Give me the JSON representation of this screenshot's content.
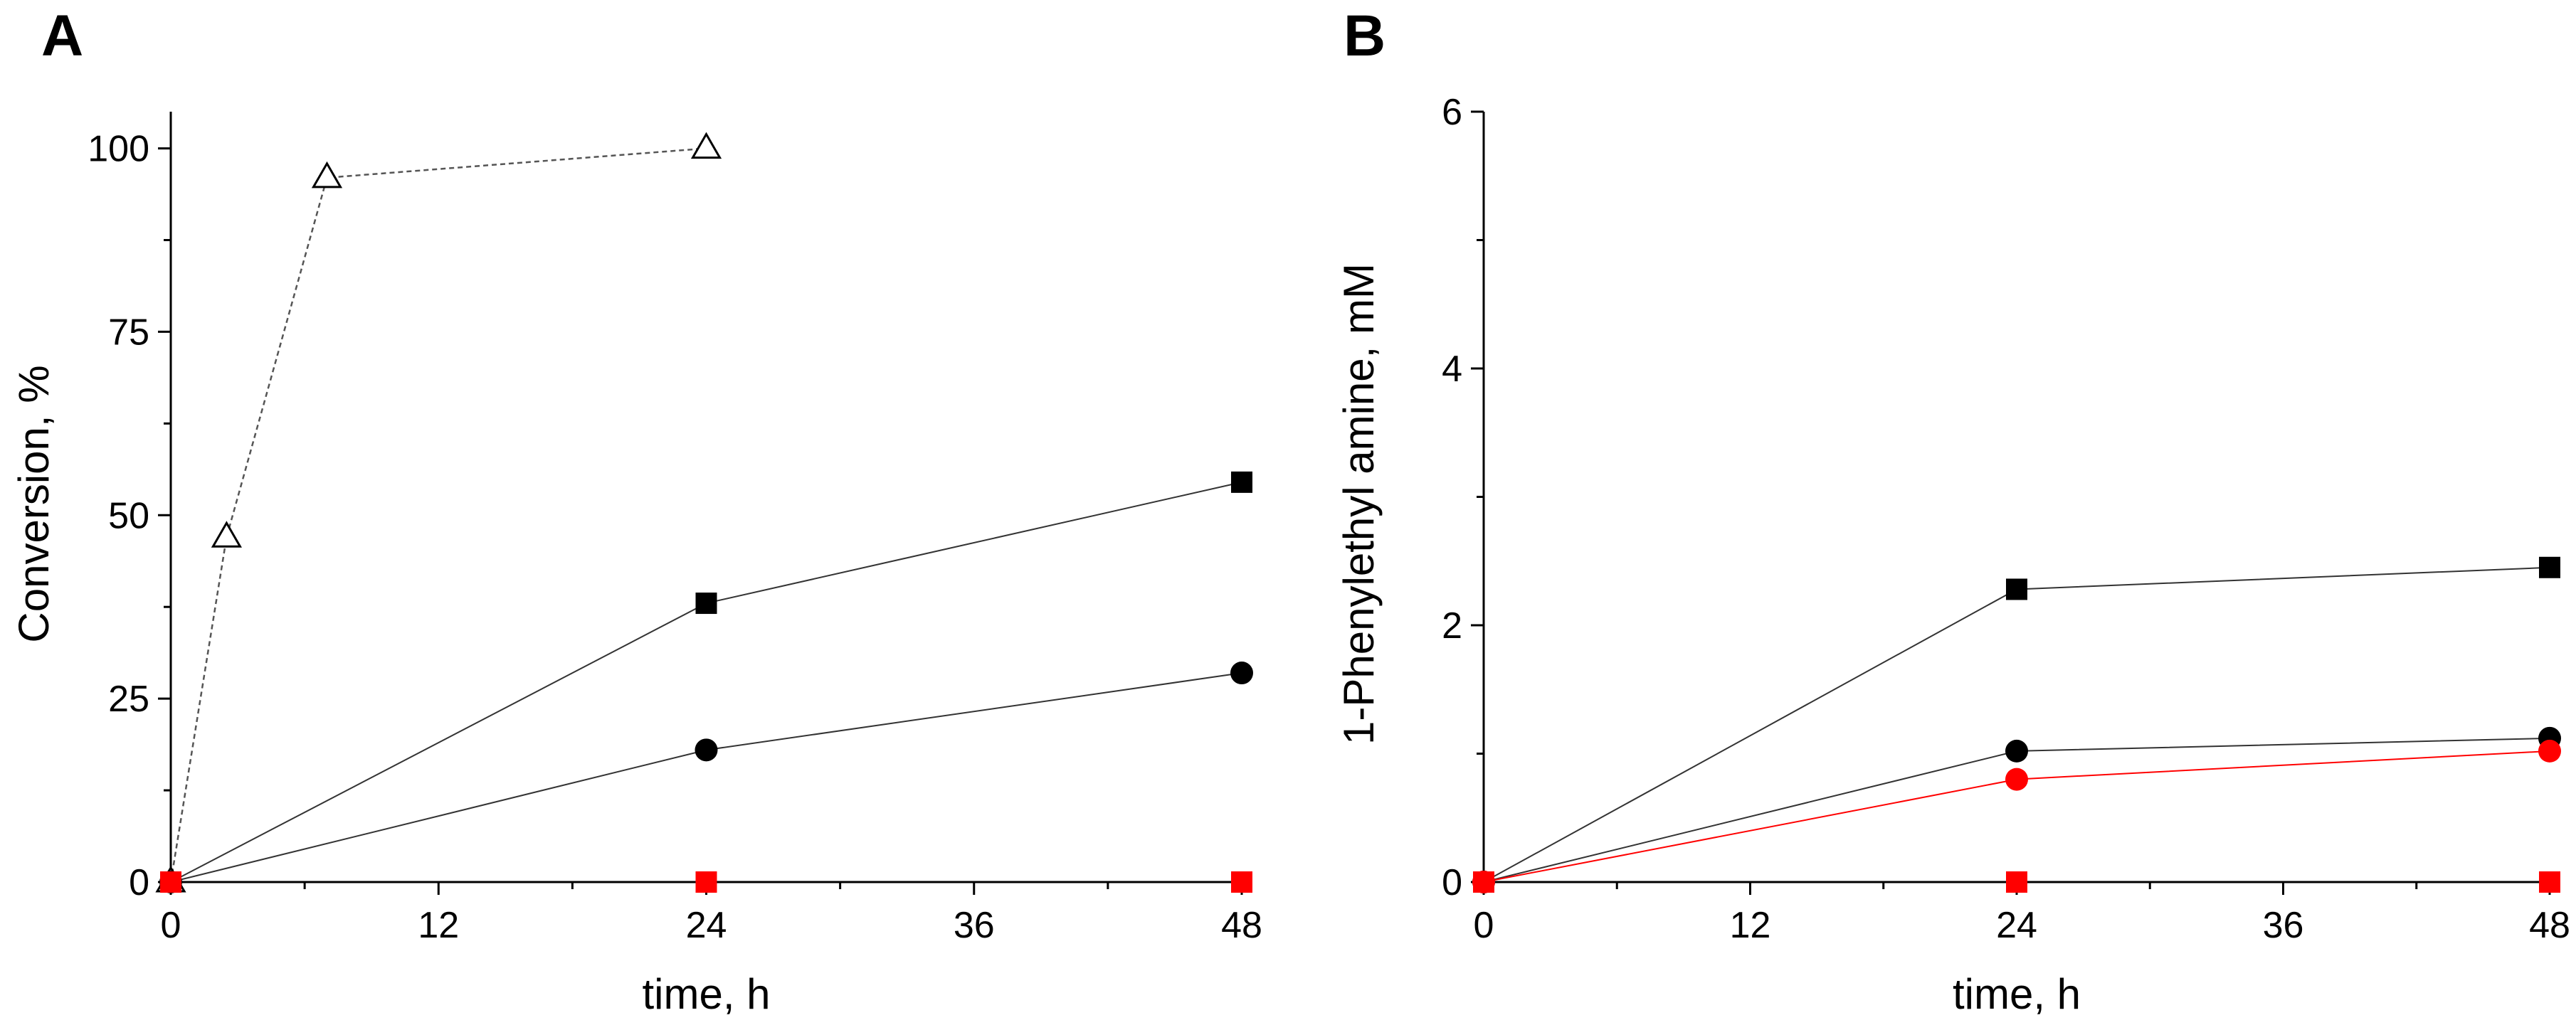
{
  "chart_data": [
    {
      "panel": "A",
      "type": "line",
      "xlabel": "time, h",
      "ylabel": "Conversion, %",
      "xlim": [
        0,
        48
      ],
      "ylim": [
        0,
        105
      ],
      "xticks": [
        0,
        12,
        24,
        36,
        48
      ],
      "yticks": [
        0,
        25,
        50,
        75,
        100
      ],
      "xtick_labels": [
        "0",
        "12",
        "24",
        "36",
        "48"
      ],
      "ytick_labels": [
        "0",
        "25",
        "50",
        "75",
        "100"
      ],
      "series": [
        {
          "name": "open triangles",
          "marker": "triangle-open",
          "line": "dotted",
          "color": "#555555",
          "marker_color": "#000000",
          "x": [
            0,
            2.5,
            7,
            24
          ],
          "y": [
            0,
            47,
            96,
            100
          ]
        },
        {
          "name": "black squares",
          "marker": "square",
          "line": "solid",
          "color": "#333333",
          "marker_color": "#000000",
          "x": [
            0,
            24,
            48
          ],
          "y": [
            0,
            38,
            54.5
          ]
        },
        {
          "name": "black circles",
          "marker": "circle",
          "line": "solid",
          "color": "#333333",
          "marker_color": "#000000",
          "x": [
            0,
            24,
            48
          ],
          "y": [
            0,
            18,
            28.5
          ]
        },
        {
          "name": "red squares",
          "marker": "square",
          "line": "solid",
          "color": "#000000",
          "marker_color": "#ff0000",
          "x": [
            0,
            24,
            48
          ],
          "y": [
            0,
            0,
            0
          ]
        }
      ]
    },
    {
      "panel": "B",
      "type": "line",
      "xlabel": "time, h",
      "ylabel": "1-Phenylethyl amine, mM",
      "xlim": [
        0,
        48
      ],
      "ylim": [
        0,
        6
      ],
      "xticks": [
        0,
        12,
        24,
        36,
        48
      ],
      "yticks": [
        0,
        2,
        4,
        6
      ],
      "xtick_labels": [
        "0",
        "12",
        "24",
        "36",
        "48"
      ],
      "ytick_labels": [
        "0",
        "2",
        "4",
        "6"
      ],
      "series": [
        {
          "name": "black squares",
          "marker": "square",
          "line": "solid",
          "color": "#333333",
          "marker_color": "#000000",
          "x": [
            0,
            24,
            48
          ],
          "y": [
            0,
            2.28,
            2.45
          ]
        },
        {
          "name": "black circles",
          "marker": "circle",
          "line": "solid",
          "color": "#333333",
          "marker_color": "#000000",
          "x": [
            0,
            24,
            48
          ],
          "y": [
            0,
            1.02,
            1.12
          ]
        },
        {
          "name": "red circles",
          "marker": "circle",
          "line": "solid",
          "color": "#ff0000",
          "marker_color": "#ff0000",
          "x": [
            0,
            24,
            48
          ],
          "y": [
            0,
            0.8,
            1.02
          ]
        },
        {
          "name": "red squares",
          "marker": "square",
          "line": "solid",
          "color": "#000000",
          "marker_color": "#ff0000",
          "x": [
            0,
            24,
            48
          ],
          "y": [
            0,
            0,
            0
          ]
        }
      ]
    }
  ]
}
